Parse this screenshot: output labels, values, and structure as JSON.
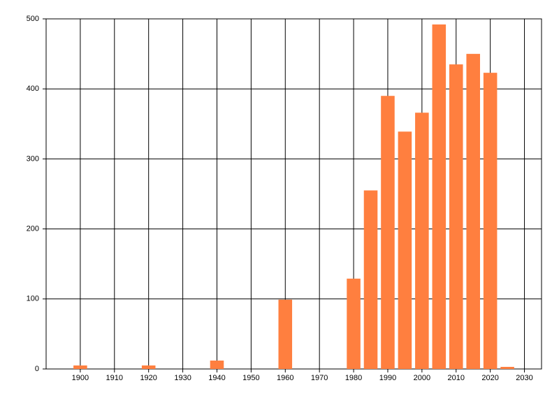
{
  "chart_data": {
    "type": "bar",
    "x": [
      1900,
      1920,
      1940,
      1960,
      1980,
      1985,
      1990,
      1995,
      2000,
      2005,
      2010,
      2015,
      2020,
      2025
    ],
    "values": [
      5,
      5,
      12,
      99,
      129,
      255,
      390,
      339,
      366,
      492,
      435,
      450,
      423,
      3
    ],
    "color": "#ff7f3f",
    "xlim": [
      1890,
      2035
    ],
    "xticks": [
      1900,
      1910,
      1920,
      1930,
      1940,
      1950,
      1960,
      1970,
      1980,
      1990,
      2000,
      2010,
      2020,
      2030
    ],
    "ylim": [
      0,
      500
    ],
    "yticks": [
      0,
      100,
      200,
      300,
      400,
      500
    ],
    "grid": true
  }
}
